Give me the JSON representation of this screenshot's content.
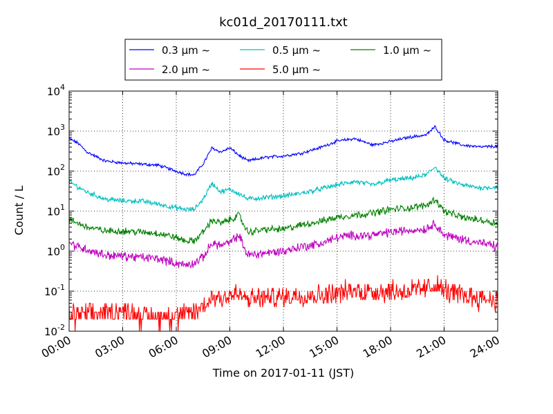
{
  "chart_data": {
    "type": "line",
    "title": "kc01d_20170111.txt",
    "xlabel": "Time on 2017-01-11 (JST)",
    "ylabel": "Count / L",
    "y_scale": "log",
    "xlim": [
      "00:00",
      "24:00"
    ],
    "ylim": [
      0.01,
      10000
    ],
    "grid": true,
    "legend_position": "top-center",
    "x_ticks": [
      "00:00",
      "03:00",
      "06:00",
      "09:00",
      "12:00",
      "15:00",
      "18:00",
      "21:00",
      "24:00"
    ],
    "y_ticks": [
      {
        "base": "10",
        "exp": "-2",
        "value": 0.01
      },
      {
        "base": "10",
        "exp": "-1",
        "value": 0.1
      },
      {
        "base": "10",
        "exp": "0",
        "value": 1
      },
      {
        "base": "10",
        "exp": "1",
        "value": 10
      },
      {
        "base": "10",
        "exp": "2",
        "value": 100
      },
      {
        "base": "10",
        "exp": "3",
        "value": 1000
      },
      {
        "base": "10",
        "exp": "4",
        "value": 10000
      }
    ],
    "x_hours": [
      0,
      0.5,
      1,
      2,
      3,
      4,
      5,
      6,
      6.5,
      7,
      7.5,
      8,
      8.5,
      9,
      9.5,
      10,
      11,
      12,
      13,
      14,
      15,
      16,
      17,
      18,
      19,
      20,
      20.5,
      21,
      22,
      23,
      24
    ],
    "series": [
      {
        "name": "0.3 μm ~",
        "color": "#0000ff",
        "noise": 0.03,
        "values": [
          650,
          500,
          300,
          180,
          160,
          150,
          140,
          100,
          85,
          80,
          150,
          380,
          300,
          380,
          250,
          180,
          220,
          240,
          280,
          380,
          560,
          650,
          450,
          550,
          700,
          800,
          1300,
          600,
          450,
          400,
          420
        ]
      },
      {
        "name": "0.5 μm ~",
        "color": "#00bfbf",
        "noise": 0.05,
        "values": [
          55,
          40,
          30,
          20,
          18,
          18,
          15,
          12,
          11,
          11,
          20,
          50,
          30,
          35,
          28,
          20,
          22,
          24,
          28,
          35,
          45,
          55,
          45,
          60,
          65,
          80,
          130,
          65,
          45,
          38,
          40
        ]
      },
      {
        "name": "1.0 μm ~",
        "color": "#008000",
        "noise": 0.07,
        "values": [
          6,
          5,
          4,
          3.2,
          3.2,
          3,
          2.8,
          2.2,
          1.8,
          1.8,
          3,
          6,
          5,
          6,
          8,
          3,
          3.5,
          3.5,
          4.5,
          5.5,
          7,
          8,
          9,
          11,
          12,
          14,
          20,
          10,
          7,
          6,
          5
        ]
      },
      {
        "name": "2.0 μm ~",
        "color": "#bf00bf",
        "noise": 0.09,
        "values": [
          1.6,
          1.3,
          1.1,
          0.8,
          0.75,
          0.7,
          0.65,
          0.5,
          0.45,
          0.5,
          0.7,
          1.6,
          1.4,
          1.6,
          2.5,
          0.8,
          0.9,
          1,
          1.3,
          1.5,
          2.2,
          2.5,
          2.5,
          3,
          3.3,
          3.6,
          5,
          2.5,
          2.0,
          1.6,
          1.3
        ]
      },
      {
        "name": "5.0 μm ~",
        "color": "#ff0000",
        "noise": 0.22,
        "values": [
          0.025,
          0.025,
          0.025,
          0.03,
          0.03,
          0.025,
          0.022,
          0.025,
          0.025,
          0.03,
          0.04,
          0.07,
          0.07,
          0.08,
          0.08,
          0.06,
          0.07,
          0.07,
          0.08,
          0.08,
          0.09,
          0.1,
          0.1,
          0.1,
          0.1,
          0.11,
          0.15,
          0.1,
          0.08,
          0.07,
          0.06
        ]
      }
    ]
  }
}
